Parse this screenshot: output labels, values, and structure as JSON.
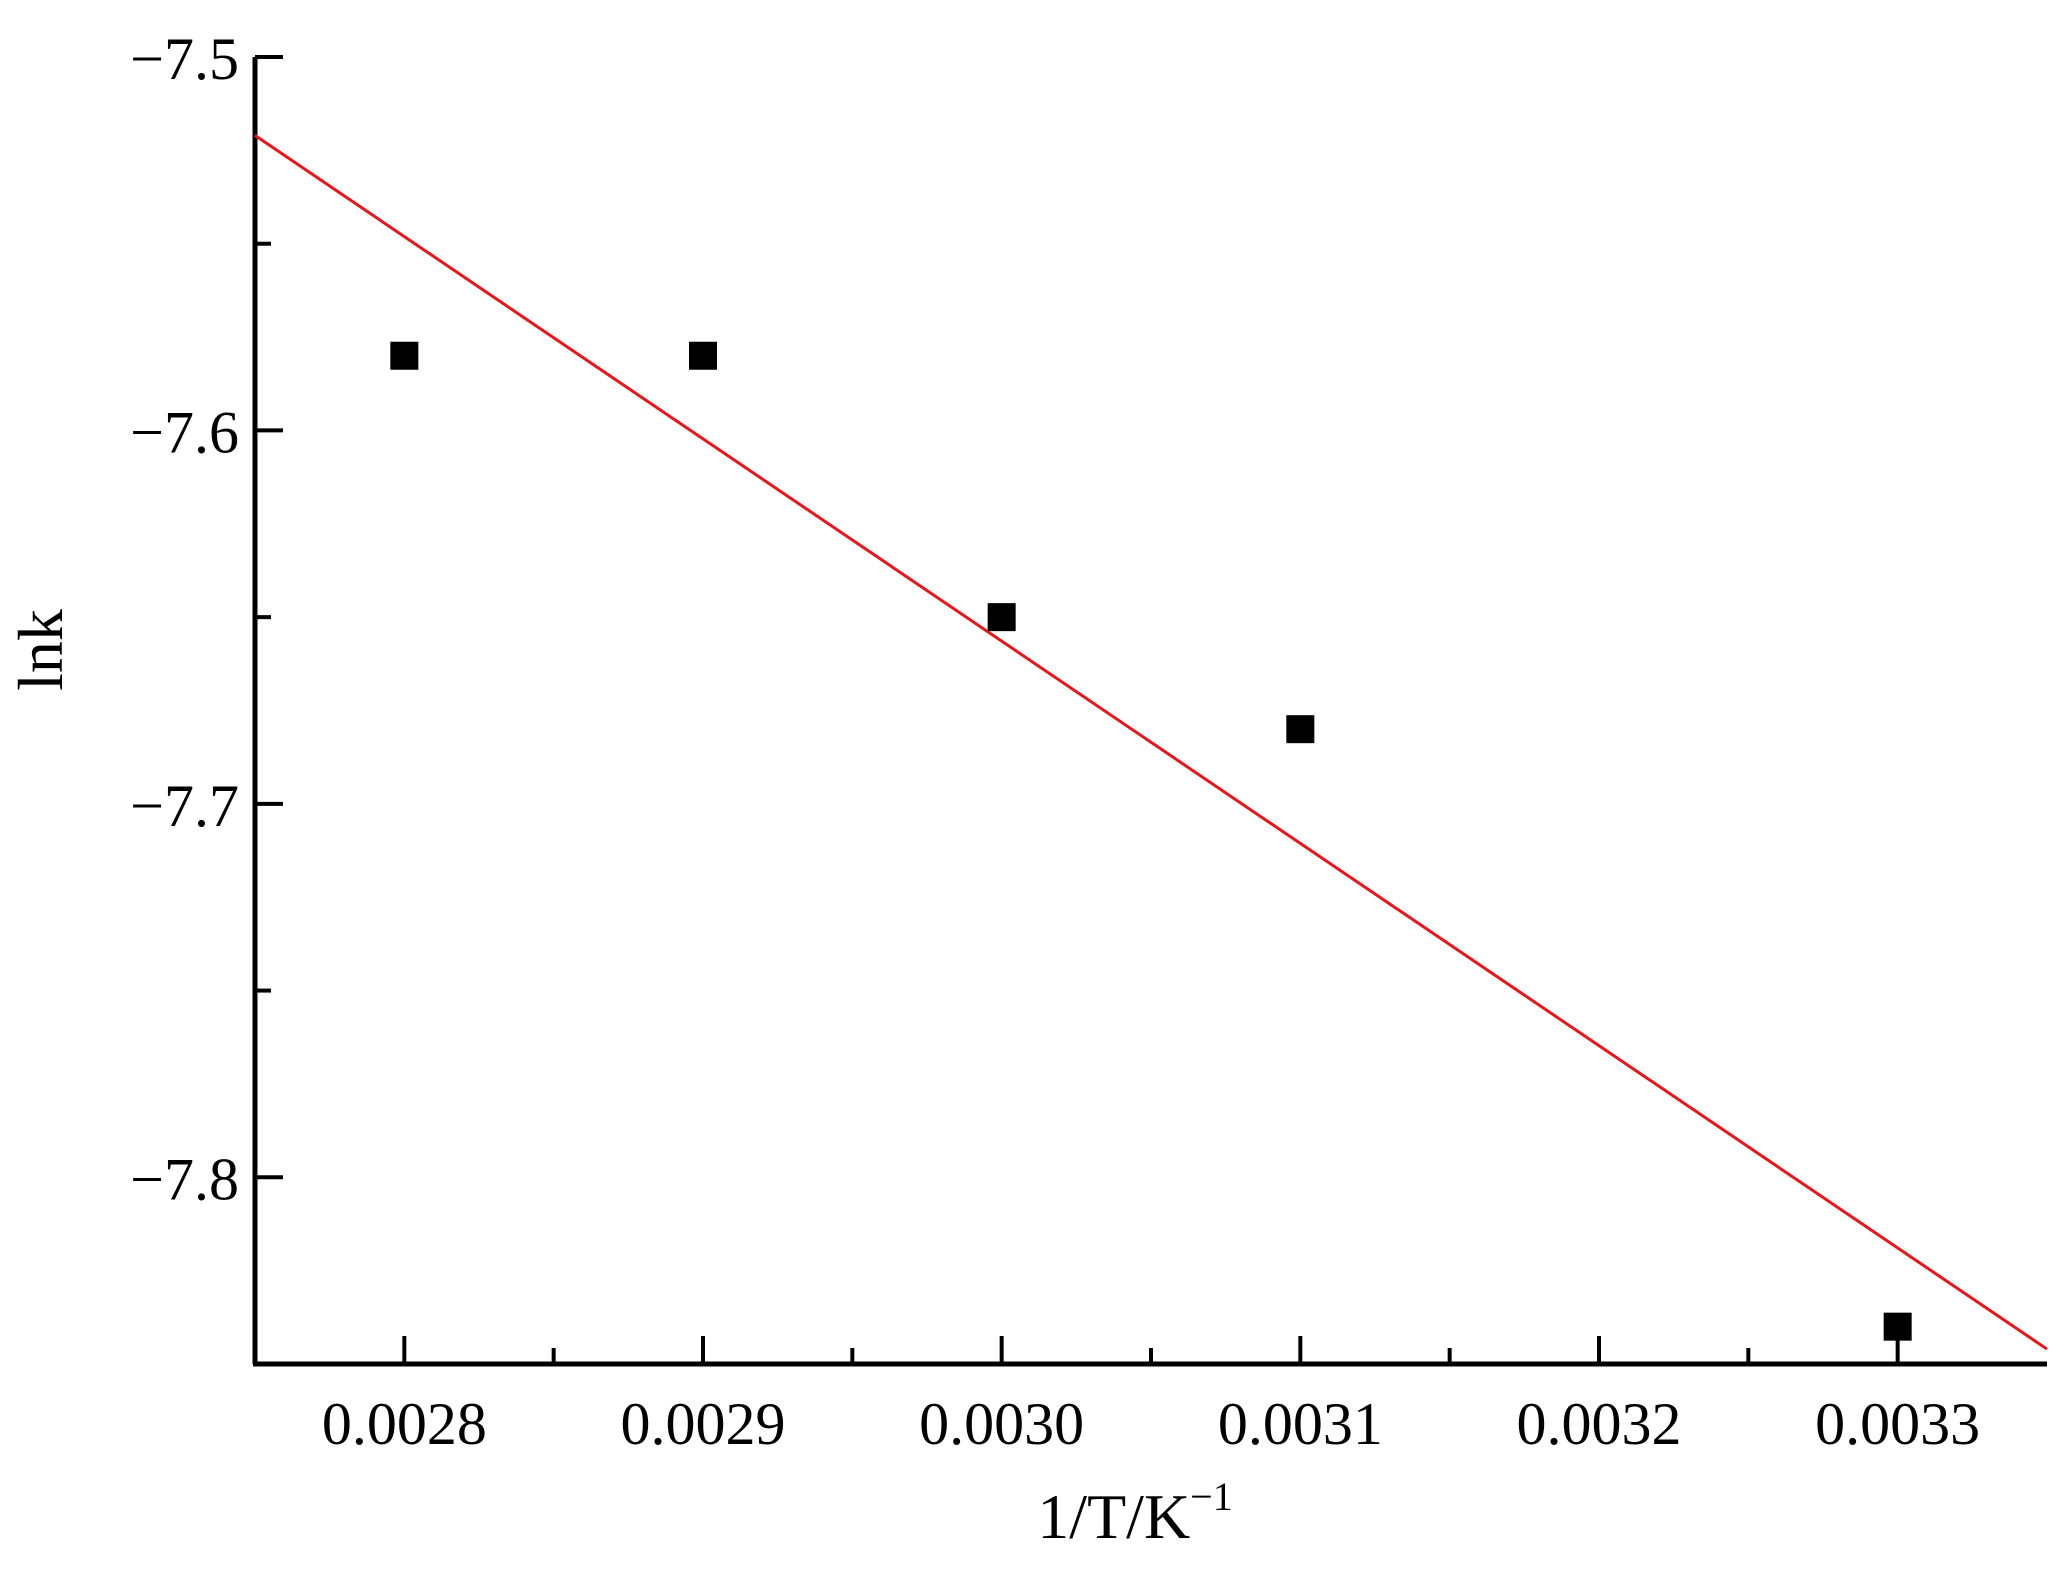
{
  "chart_data": {
    "type": "scatter",
    "xlabel": "1/T/K",
    "xlabel_sup": "−1",
    "ylabel": "lnk",
    "xlim": [
      0.00275,
      0.00335
    ],
    "ylim": [
      -7.85,
      -7.5
    ],
    "x_ticks": [
      {
        "value": 0.0028,
        "label": "0.0028"
      },
      {
        "value": 0.0029,
        "label": "0.0029"
      },
      {
        "value": 0.003,
        "label": "0.0030"
      },
      {
        "value": 0.0031,
        "label": "0.0031"
      },
      {
        "value": 0.0032,
        "label": "0.0032"
      },
      {
        "value": 0.0033,
        "label": "0.0033"
      }
    ],
    "x_minor_ticks": [
      0.00285,
      0.00295,
      0.00305,
      0.00315,
      0.00325
    ],
    "y_ticks": [
      {
        "value": -7.5,
        "label": "−7.5"
      },
      {
        "value": -7.6,
        "label": "−7.6"
      },
      {
        "value": -7.7,
        "label": "−7.7"
      },
      {
        "value": -7.8,
        "label": "−7.8"
      }
    ],
    "y_minor_ticks": [
      -7.55,
      -7.65,
      -7.75
    ],
    "series": [
      {
        "type": "scatter",
        "marker": "square",
        "color": "#000000",
        "x": [
          0.0028,
          0.0029,
          0.003,
          0.0031,
          0.0033
        ],
        "y": [
          -7.58,
          -7.58,
          -7.65,
          -7.68,
          -7.84
        ]
      },
      {
        "type": "line",
        "color": "#e8161b",
        "x": [
          0.00275,
          0.00335
        ],
        "y": [
          -7.521,
          -7.846
        ]
      }
    ],
    "grid": false
  }
}
